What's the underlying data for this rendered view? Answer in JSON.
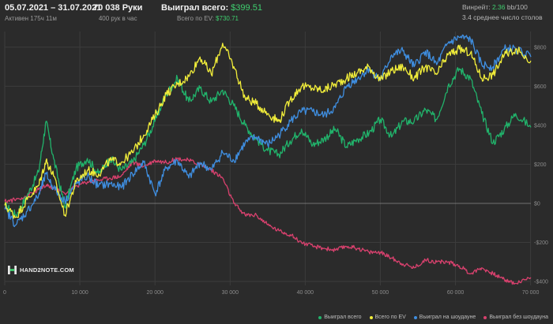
{
  "header": {
    "date_range": "05.07.2021 – 31.07.2021",
    "active_time": "Активен 175ч 11м",
    "hands": "70 038 Руки",
    "hands_per_hour": "400 рук в час",
    "won_total_label": "Выиграл всего:",
    "won_total_value": "$399.51",
    "ev_total_label": "Всего по EV:",
    "ev_total_value": "$730.71",
    "winrate_label": "Винрейт:",
    "winrate_value": "2.36",
    "winrate_bb": "bb/100",
    "avg_tables": "3.4 среднее число столов"
  },
  "logo": {
    "text": "HAND2NOTE.COM"
  },
  "colors": {
    "background": "#2b2b2b",
    "grid": "#3c3c3c",
    "zero_line": "#8a8a8a",
    "won_total": "#21b36b",
    "ev_total": "#f2ee3a",
    "won_showdown": "#3f8ee0",
    "won_nonshowdown": "#d9416e"
  },
  "chart_data": {
    "type": "line",
    "title": "",
    "xlabel": "",
    "ylabel": "",
    "xlim": [
      0,
      70038
    ],
    "ylim": [
      -420,
      880
    ],
    "x_ticks": [
      0,
      10000,
      20000,
      30000,
      40000,
      50000,
      60000,
      70000
    ],
    "x_tick_labels": [
      "0",
      "10 000",
      "20 000",
      "30 000",
      "40 000",
      "50 000",
      "60 000",
      "70 000"
    ],
    "y_ticks": [
      -400,
      -200,
      0,
      200,
      400,
      600,
      800
    ],
    "y_tick_labels": [
      "-$400",
      "-$200",
      "$0",
      "$200",
      "$400",
      "$600",
      "$800"
    ],
    "grid": true,
    "legend_position": "bottom-right",
    "x": [
      0,
      1500,
      3000,
      4500,
      5500,
      6500,
      8000,
      9500,
      11000,
      12500,
      14000,
      15500,
      17000,
      18500,
      20000,
      21500,
      23000,
      24500,
      26000,
      27500,
      29000,
      30500,
      32000,
      33500,
      35000,
      36500,
      38000,
      39500,
      41000,
      42500,
      44000,
      45500,
      47000,
      48500,
      50000,
      51500,
      53000,
      54500,
      56000,
      57500,
      59000,
      60500,
      62000,
      63500,
      65000,
      66500,
      68000,
      70038
    ],
    "series": [
      {
        "name": "Выиграл всего",
        "color": "#21b36b",
        "values": [
          -10,
          -60,
          40,
          160,
          420,
          230,
          -20,
          180,
          230,
          150,
          230,
          170,
          210,
          300,
          420,
          560,
          640,
          520,
          590,
          520,
          580,
          500,
          400,
          330,
          270,
          250,
          320,
          380,
          300,
          330,
          380,
          290,
          330,
          360,
          430,
          340,
          420,
          420,
          480,
          430,
          600,
          690,
          640,
          460,
          310,
          380,
          460,
          390
        ]
      },
      {
        "name": "Всего по EV",
        "color": "#f2ee3a",
        "values": [
          -10,
          -70,
          20,
          90,
          220,
          140,
          -60,
          110,
          170,
          150,
          220,
          210,
          260,
          350,
          450,
          560,
          610,
          650,
          750,
          660,
          820,
          700,
          540,
          510,
          460,
          420,
          530,
          600,
          590,
          580,
          610,
          640,
          670,
          700,
          630,
          680,
          700,
          640,
          700,
          660,
          760,
          790,
          770,
          640,
          660,
          760,
          790,
          730
        ]
      },
      {
        "name": "Выиграл на шоудауне",
        "color": "#3f8ee0",
        "values": [
          -30,
          -110,
          -40,
          40,
          150,
          80,
          10,
          100,
          140,
          90,
          100,
          80,
          150,
          210,
          50,
          180,
          220,
          130,
          210,
          170,
          260,
          220,
          310,
          340,
          300,
          350,
          420,
          470,
          470,
          450,
          490,
          600,
          640,
          690,
          630,
          760,
          780,
          700,
          780,
          710,
          820,
          850,
          840,
          710,
          700,
          790,
          790,
          750
        ]
      },
      {
        "name": "Выиграл без шоудауна",
        "color": "#d9416e",
        "values": [
          10,
          20,
          40,
          70,
          90,
          80,
          50,
          90,
          110,
          120,
          130,
          140,
          210,
          190,
          220,
          210,
          230,
          220,
          200,
          170,
          130,
          0,
          -60,
          -60,
          -110,
          -140,
          -160,
          -200,
          -220,
          -230,
          -240,
          -220,
          -230,
          -250,
          -250,
          -280,
          -310,
          -330,
          -290,
          -300,
          -300,
          -320,
          -360,
          -330,
          -360,
          -390,
          -410,
          -380
        ]
      }
    ]
  }
}
